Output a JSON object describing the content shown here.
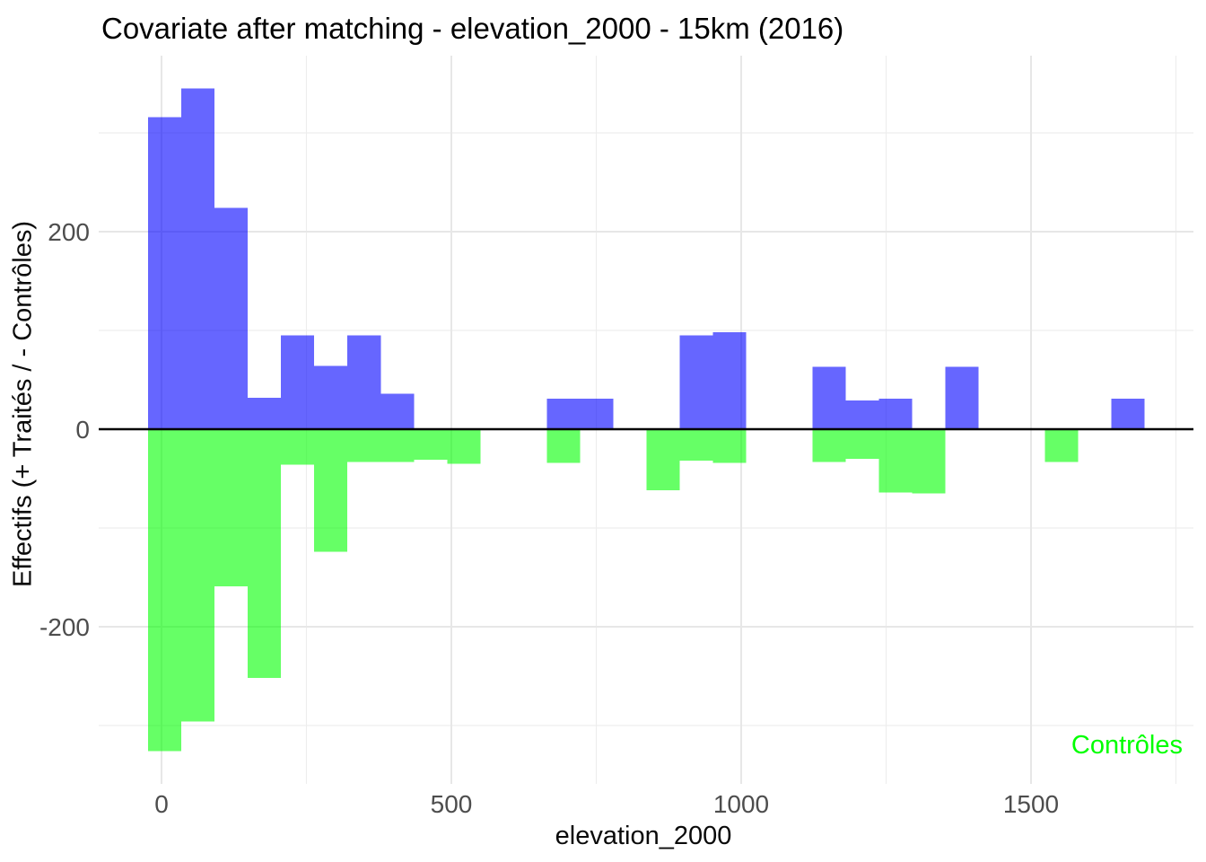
{
  "title": "Covariate after matching - elevation_2000 - 15km (2016)",
  "annotation": {
    "label": "Contrôles",
    "color": "#00FF00"
  },
  "colors": {
    "treated_bar": "rgba(0,0,255,0.6)",
    "control_bar": "rgba(0,255,0,0.6)",
    "treated_hex_on_white": "#6666FF",
    "control_hex_on_white": "#66FF66",
    "grid_major": "#e7e7e7",
    "grid_minor": "#ededed",
    "zero_line": "#000000",
    "tick_label": "#4d4d4d"
  },
  "chart_data": {
    "type": "bar",
    "subtype": "diverging-histogram",
    "title": "Covariate after matching - elevation_2000 - 15km (2016)",
    "xlabel": "elevation_2000",
    "ylabel": "Effectifs (+ Traités / - Contrôles)",
    "bin_start": -23,
    "bin_width": 57.3,
    "n_bins": 30,
    "xlim": [
      -109,
      1782
    ],
    "ylim": [
      -360,
      379
    ],
    "grid": "on",
    "legend_position": "annotation-bottom-right",
    "x_ticks": [
      0,
      500,
      1000,
      1500
    ],
    "x_minor_ticks": [
      250,
      750,
      1250,
      1750
    ],
    "y_ticks": [
      200,
      0,
      -200
    ],
    "y_minor_ticks": [
      300,
      100,
      -100,
      -300
    ],
    "series": [
      {
        "name": "Traités",
        "direction": "positive",
        "values": [
          316,
          345,
          224,
          32,
          95,
          64,
          95,
          36,
          0,
          0,
          0,
          0,
          31,
          31,
          0,
          0,
          95,
          98,
          0,
          0,
          63,
          29,
          31,
          0,
          63,
          0,
          0,
          0,
          0,
          31
        ]
      },
      {
        "name": "Contrôles",
        "direction": "negative",
        "values": [
          -326,
          -296,
          -159,
          -252,
          -36,
          -124,
          -33,
          -33,
          -31,
          -35,
          0,
          0,
          -34,
          0,
          0,
          -62,
          -32,
          -34,
          0,
          0,
          -33,
          -30,
          -64,
          -65,
          0,
          0,
          0,
          -33,
          0,
          0
        ]
      }
    ]
  }
}
